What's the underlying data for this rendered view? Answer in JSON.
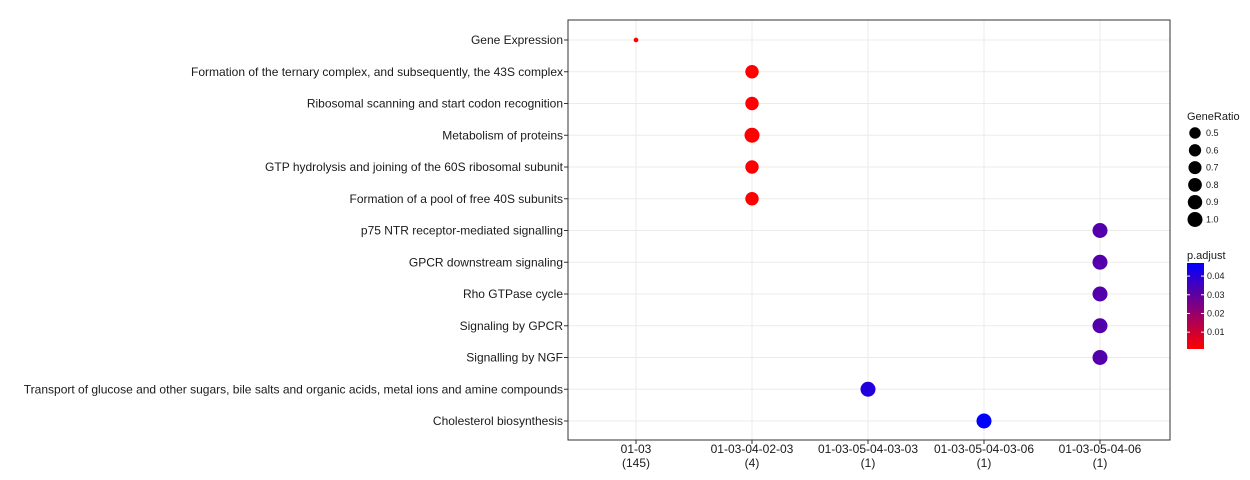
{
  "chart_data": {
    "type": "scatter",
    "title": "",
    "xlabel": "",
    "ylabel": "",
    "grid": true,
    "legend_placement": "right",
    "x_categories": [
      {
        "line1": "01-03",
        "line2": "(145)"
      },
      {
        "line1": "01-03-04-02-03",
        "line2": "(4)"
      },
      {
        "line1": "01-03-05-04-03-03",
        "line2": "(1)"
      },
      {
        "line1": "01-03-05-04-03-06",
        "line2": "(1)"
      },
      {
        "line1": "01-03-05-04-06",
        "line2": "(1)"
      }
    ],
    "y_categories": [
      "Gene Expression",
      "Formation of the ternary complex, and subsequently, the 43S complex",
      "Ribosomal scanning and start codon recognition",
      "Metabolism of proteins",
      "GTP hydrolysis and joining of the 60S ribosomal subunit",
      "Formation of a pool of free 40S subunits",
      "p75 NTR receptor-mediated signalling",
      "GPCR downstream signaling",
      "Rho GTPase cycle",
      "Signaling by GPCR",
      "Signalling by NGF",
      "Transport of glucose and other sugars, bile salts and organic acids, metal ions and amine compounds",
      "Cholesterol biosynthesis"
    ],
    "points": [
      {
        "x": 0,
        "y": 0,
        "gene_ratio": 0.02,
        "p_adjust": 0.001
      },
      {
        "x": 1,
        "y": 1,
        "gene_ratio": 0.75,
        "p_adjust": 0.001
      },
      {
        "x": 1,
        "y": 2,
        "gene_ratio": 0.75,
        "p_adjust": 0.001
      },
      {
        "x": 1,
        "y": 3,
        "gene_ratio": 1.0,
        "p_adjust": 0.001
      },
      {
        "x": 1,
        "y": 4,
        "gene_ratio": 0.75,
        "p_adjust": 0.001
      },
      {
        "x": 1,
        "y": 5,
        "gene_ratio": 0.75,
        "p_adjust": 0.001
      },
      {
        "x": 4,
        "y": 6,
        "gene_ratio": 1.0,
        "p_adjust": 0.032
      },
      {
        "x": 4,
        "y": 7,
        "gene_ratio": 1.0,
        "p_adjust": 0.032
      },
      {
        "x": 4,
        "y": 8,
        "gene_ratio": 1.0,
        "p_adjust": 0.032
      },
      {
        "x": 4,
        "y": 9,
        "gene_ratio": 1.0,
        "p_adjust": 0.032
      },
      {
        "x": 4,
        "y": 10,
        "gene_ratio": 1.0,
        "p_adjust": 0.032
      },
      {
        "x": 2,
        "y": 11,
        "gene_ratio": 1.0,
        "p_adjust": 0.041
      },
      {
        "x": 3,
        "y": 12,
        "gene_ratio": 1.0,
        "p_adjust": 0.047
      }
    ],
    "size_legend": {
      "title": "GeneRatio",
      "values": [
        0.5,
        0.6,
        0.7,
        0.8,
        0.9,
        1.0
      ],
      "labels": [
        "0.5",
        "0.6",
        "0.7",
        "0.8",
        "0.9",
        "1.0"
      ]
    },
    "color_legend": {
      "title": "p.adjust",
      "range": [
        0.001,
        0.047
      ],
      "ticks": [
        0.01,
        0.02,
        0.03,
        0.04
      ],
      "tick_labels": [
        "0.01",
        "0.02",
        "0.03",
        "0.04"
      ],
      "low_color": "#ff0000",
      "high_color": "#0000ff"
    }
  }
}
